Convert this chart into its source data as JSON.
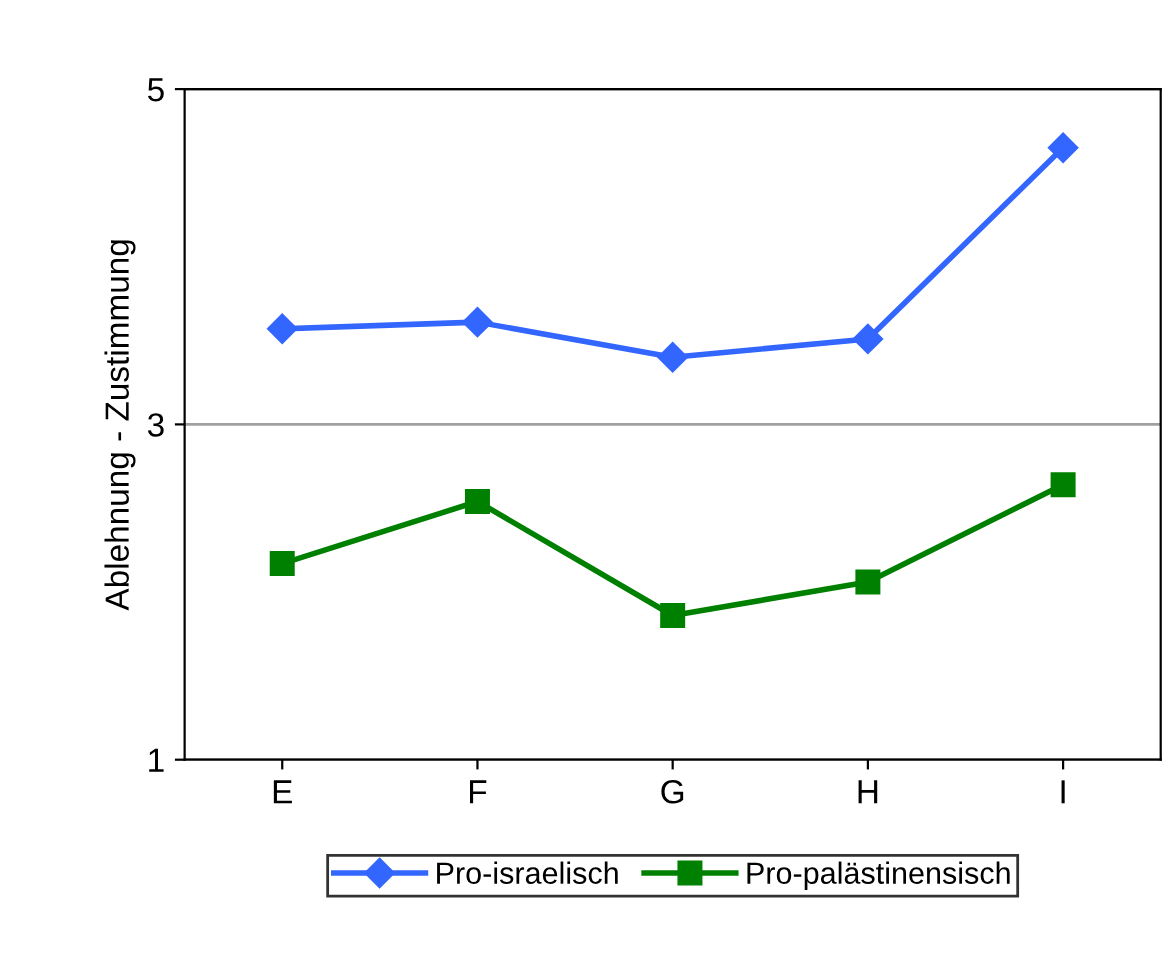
{
  "chart_data": {
    "type": "line",
    "ylabel": "Ablehnung - Zustimmung",
    "categories": [
      "E",
      "F",
      "G",
      "H",
      "I"
    ],
    "series": [
      {
        "name": "Pro-israelisch",
        "color": "#3366ff",
        "marker": "diamond",
        "values": [
          3.57,
          3.61,
          3.4,
          3.51,
          4.65
        ]
      },
      {
        "name": "Pro-palästinensisch",
        "color": "#008000",
        "marker": "square",
        "values": [
          2.17,
          2.54,
          1.86,
          2.06,
          2.64
        ]
      }
    ],
    "ylim": [
      1,
      5
    ],
    "yticks": [
      1,
      3,
      5
    ],
    "grid": "y",
    "legend": "bottom",
    "line_style": "solid"
  }
}
